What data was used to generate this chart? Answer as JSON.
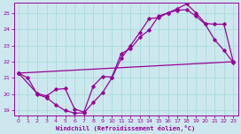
{
  "xlabel": "Windchill (Refroidissement éolien,°C)",
  "xlim": [
    -0.5,
    23.5
  ],
  "ylim": [
    18.7,
    25.6
  ],
  "yticks": [
    19,
    20,
    21,
    22,
    23,
    24,
    25
  ],
  "xticks": [
    0,
    1,
    2,
    3,
    4,
    5,
    6,
    7,
    8,
    9,
    10,
    11,
    12,
    13,
    14,
    15,
    16,
    17,
    18,
    19,
    20,
    21,
    22,
    23
  ],
  "line_color": "#990099",
  "bg_color": "#cce8ee",
  "grid_color": "#aadddd",
  "line1_x": [
    0,
    1,
    2,
    3,
    4,
    5,
    6,
    7,
    8,
    9,
    10,
    11,
    12,
    13,
    14,
    15,
    16,
    17,
    18,
    19,
    20,
    21,
    22,
    23
  ],
  "line1_y": [
    21.3,
    21.0,
    20.0,
    19.8,
    19.35,
    19.0,
    18.85,
    18.85,
    19.5,
    20.1,
    21.0,
    22.2,
    23.0,
    23.8,
    24.65,
    24.7,
    25.0,
    25.15,
    25.2,
    24.8,
    24.3,
    23.35,
    22.7,
    21.95
  ],
  "line2_x": [
    0,
    2,
    3,
    4,
    5,
    6,
    7,
    8,
    9,
    10,
    11,
    12,
    13,
    14,
    15,
    16,
    17,
    18,
    19,
    20,
    21,
    22,
    23
  ],
  "line2_y": [
    21.3,
    20.05,
    19.9,
    20.3,
    20.35,
    19.1,
    18.9,
    20.5,
    21.1,
    21.05,
    22.5,
    22.8,
    23.5,
    23.95,
    24.8,
    25.0,
    25.25,
    25.55,
    25.0,
    24.35,
    24.3,
    24.3,
    22.0
  ],
  "line3_x": [
    0,
    23
  ],
  "line3_y": [
    21.3,
    22.0
  ]
}
